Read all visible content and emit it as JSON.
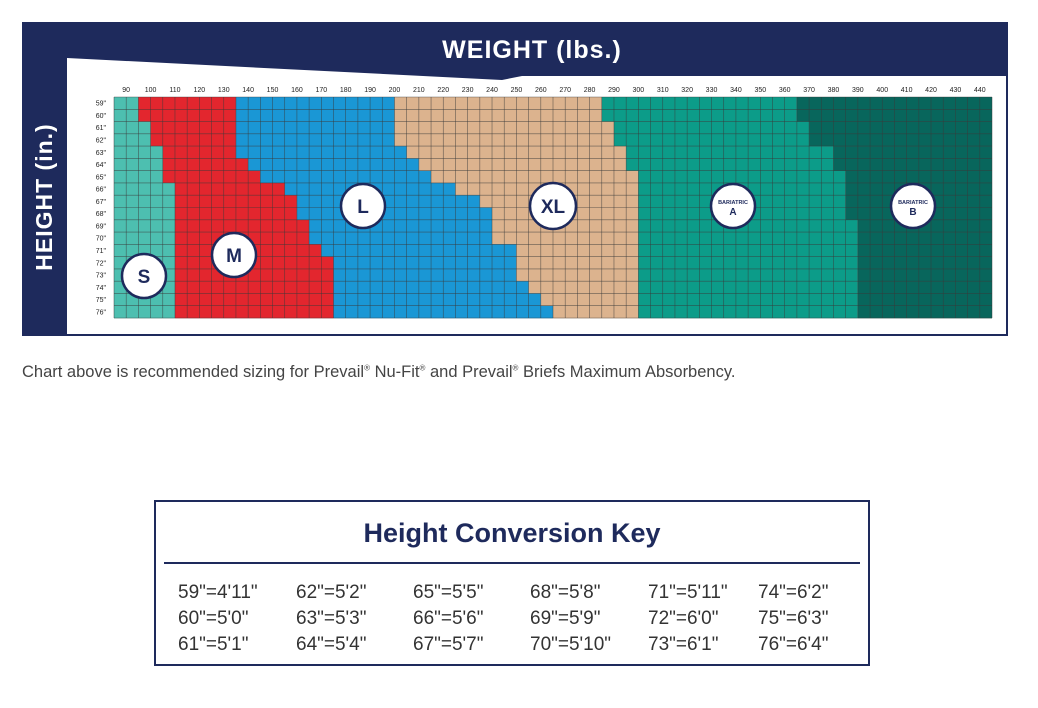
{
  "chart_data": {
    "type": "heatmap",
    "title": "WEIGHT (lbs.)",
    "ylabel": "HEIGHT (in.)",
    "x_ticks": [
      "90",
      "100",
      "110",
      "120",
      "130",
      "140",
      "150",
      "160",
      "170",
      "180",
      "190",
      "200",
      "210",
      "220",
      "230",
      "240",
      "250",
      "260",
      "270",
      "280",
      "290",
      "300",
      "310",
      "320",
      "330",
      "340",
      "350",
      "360",
      "370",
      "380",
      "390",
      "400",
      "410",
      "420",
      "430",
      "440"
    ],
    "y_ticks": [
      "59\"",
      "60\"",
      "61\"",
      "62\"",
      "63\"",
      "64\"",
      "65\"",
      "66\"",
      "67\"",
      "68\"",
      "69\"",
      "70\"",
      "71\"",
      "72\"",
      "73\"",
      "74\"",
      "75\"",
      "76\""
    ],
    "weight_range_lbs": [
      85,
      445
    ],
    "height_range_in": [
      59,
      76
    ],
    "sizes": [
      {
        "label": "S",
        "lines": [
          "S"
        ],
        "color": "#4dbfb0",
        "upper_bound_lbs_by_height": [
          95,
          95,
          100,
          100,
          105,
          105,
          105,
          110,
          110,
          110,
          110,
          110,
          110,
          110,
          110,
          110,
          110,
          110
        ]
      },
      {
        "label": "M",
        "lines": [
          "M"
        ],
        "color": "#e3262e",
        "upper_bound_lbs_by_height": [
          135,
          135,
          135,
          135,
          135,
          140,
          145,
          155,
          160,
          160,
          165,
          165,
          170,
          175,
          175,
          175,
          175,
          175
        ]
      },
      {
        "label": "L",
        "lines": [
          "L"
        ],
        "color": "#1a97d5",
        "upper_bound_lbs_by_height": [
          200,
          200,
          200,
          200,
          205,
          210,
          215,
          225,
          235,
          240,
          240,
          240,
          250,
          250,
          250,
          255,
          260,
          265
        ]
      },
      {
        "label": "XL",
        "lines": [
          "XL"
        ],
        "color": "#dcb38e",
        "upper_bound_lbs_by_height": [
          285,
          285,
          290,
          290,
          295,
          295,
          300,
          300,
          300,
          300,
          300,
          300,
          300,
          300,
          300,
          300,
          300,
          300
        ]
      },
      {
        "label": "BARIATRIC A",
        "lines": [
          "BARIATRIC",
          "A"
        ],
        "color": "#0c9c89",
        "upper_bound_lbs_by_height": [
          365,
          365,
          370,
          370,
          380,
          380,
          385,
          385,
          385,
          385,
          390,
          390,
          390,
          390,
          390,
          390,
          390,
          390
        ]
      },
      {
        "label": "BARIATRIC B",
        "lines": [
          "BARIATRIC",
          "B"
        ],
        "color": "#08665c",
        "upper_bound_lbs_by_height": [
          445,
          445,
          445,
          445,
          445,
          445,
          445,
          445,
          445,
          445,
          445,
          445,
          445,
          445,
          445,
          445,
          445,
          445
        ]
      }
    ]
  },
  "caption": {
    "part1": "Chart above is recommended sizing for Prevail",
    "mark1": "®",
    "part2": " Nu-Fit",
    "mark2": "®",
    "part3": " and Prevail",
    "mark3": "®",
    "part4": " Briefs Maximum Absorbency."
  },
  "conversion_key": {
    "title": "Height Conversion Key",
    "rows": [
      [
        "59\"=4'11\"",
        "62\"=5'2\"",
        "65\"=5'5\"",
        "68\"=5'8\"",
        "71\"=5'11\"",
        "74\"=6'2\""
      ],
      [
        "60\"=5'0\"",
        "63\"=5'3\"",
        "66\"=5'6\"",
        "69\"=5'9\"",
        "72\"=6'0\"",
        "75\"=6'3\""
      ],
      [
        "61\"=5'1\"",
        "64\"=5'4\"",
        "67\"=5'7\"",
        "70\"=5'10\"",
        "73\"=6'1\"",
        "76\"=6'4\""
      ]
    ]
  },
  "colors": {
    "navy": "#1e2a5c",
    "grid_line": "#3a3a3a"
  }
}
